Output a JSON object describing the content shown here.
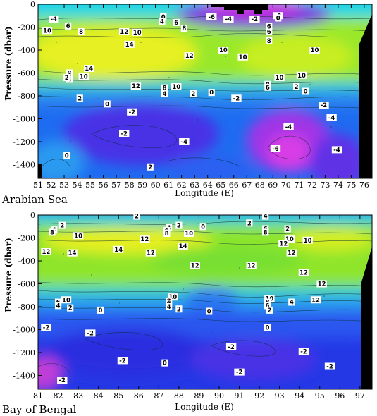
{
  "chart_data": [
    {
      "type": "heatmap",
      "region": "Arabian Sea",
      "xlabel": "Longitude (E)",
      "ylabel": "Pressure (dbar)",
      "xlim": [
        51,
        76.6
      ],
      "ylim": [
        0,
        -1520
      ],
      "x_ticks": [
        "51",
        "52",
        "53",
        "54",
        "55",
        "56",
        "57",
        "58",
        "59",
        "60",
        "61",
        "62",
        "63",
        "64",
        "65",
        "66",
        "67",
        "68",
        "69",
        "70",
        "71",
        "72",
        "73",
        "74",
        "75",
        "76"
      ],
      "y_ticks": [
        "0",
        "-200",
        "-400",
        "-600",
        "-800",
        "-1000",
        "-1200",
        "-1400"
      ],
      "contour_labels": [
        {
          "x": 52.2,
          "y": -130,
          "v": "-4"
        },
        {
          "x": 53.3,
          "y": -190,
          "v": "6"
        },
        {
          "x": 51.7,
          "y": -230,
          "v": "10"
        },
        {
          "x": 54.3,
          "y": -240,
          "v": "8"
        },
        {
          "x": 57.6,
          "y": -240,
          "v": "12"
        },
        {
          "x": 58.6,
          "y": -245,
          "v": "10"
        },
        {
          "x": 60.6,
          "y": -110,
          "v": "0"
        },
        {
          "x": 60.5,
          "y": -150,
          "v": "4"
        },
        {
          "x": 61.6,
          "y": -160,
          "v": "6"
        },
        {
          "x": 62.2,
          "y": -210,
          "v": "8"
        },
        {
          "x": 58.0,
          "y": -350,
          "v": "14"
        },
        {
          "x": 62.6,
          "y": -450,
          "v": "12"
        },
        {
          "x": 65.2,
          "y": -400,
          "v": "10"
        },
        {
          "x": 66.7,
          "y": -460,
          "v": "10"
        },
        {
          "x": 68.7,
          "y": -320,
          "v": "8"
        },
        {
          "x": 68.7,
          "y": -240,
          "v": "6"
        },
        {
          "x": 68.7,
          "y": -195,
          "v": "6"
        },
        {
          "x": 69.4,
          "y": -100,
          "v": "-2"
        },
        {
          "x": 69.4,
          "y": -120,
          "v": "0"
        },
        {
          "x": 64.3,
          "y": -110,
          "v": "-6"
        },
        {
          "x": 65.6,
          "y": -130,
          "v": "-4"
        },
        {
          "x": 67.6,
          "y": -130,
          "v": "-2"
        },
        {
          "x": 72.2,
          "y": -400,
          "v": "10"
        },
        {
          "x": 53.4,
          "y": -600,
          "v": "8"
        },
        {
          "x": 53.4,
          "y": -625,
          "v": "6"
        },
        {
          "x": 53.4,
          "y": -655,
          "v": "4"
        },
        {
          "x": 53.2,
          "y": -640,
          "v": "2"
        },
        {
          "x": 54.5,
          "y": -630,
          "v": "10"
        },
        {
          "x": 54.9,
          "y": -560,
          "v": "14"
        },
        {
          "x": 58.5,
          "y": -715,
          "v": "12"
        },
        {
          "x": 60.7,
          "y": -730,
          "v": "8"
        },
        {
          "x": 60.7,
          "y": -780,
          "v": "4"
        },
        {
          "x": 61.6,
          "y": -720,
          "v": "10"
        },
        {
          "x": 62.9,
          "y": -780,
          "v": "2"
        },
        {
          "x": 64.3,
          "y": -770,
          "v": "0"
        },
        {
          "x": 68.6,
          "y": -700,
          "v": "8"
        },
        {
          "x": 68.6,
          "y": -725,
          "v": "6"
        },
        {
          "x": 69.5,
          "y": -640,
          "v": "10"
        },
        {
          "x": 71.2,
          "y": -620,
          "v": "10"
        },
        {
          "x": 70.8,
          "y": -720,
          "v": "2"
        },
        {
          "x": 71.5,
          "y": -760,
          "v": "0"
        },
        {
          "x": 54.2,
          "y": -820,
          "v": "2"
        },
        {
          "x": 56.3,
          "y": -870,
          "v": "0"
        },
        {
          "x": 58.2,
          "y": -940,
          "v": "-2"
        },
        {
          "x": 66.2,
          "y": -820,
          "v": "-2"
        },
        {
          "x": 72.9,
          "y": -880,
          "v": "-2"
        },
        {
          "x": 73.5,
          "y": -990,
          "v": "-4"
        },
        {
          "x": 70.2,
          "y": -1070,
          "v": "-4"
        },
        {
          "x": 57.6,
          "y": -1130,
          "v": "-2"
        },
        {
          "x": 62.2,
          "y": -1200,
          "v": "-4"
        },
        {
          "x": 69.2,
          "y": -1260,
          "v": "-6"
        },
        {
          "x": 73.9,
          "y": -1270,
          "v": "-4"
        },
        {
          "x": 53.2,
          "y": -1320,
          "v": "0"
        },
        {
          "x": 59.6,
          "y": -1420,
          "v": "2"
        }
      ]
    },
    {
      "type": "heatmap",
      "region": "Bay of Bengal",
      "xlabel": "Longitude (E)",
      "ylabel": "Pressure (dbar)",
      "xlim": [
        81,
        97.6
      ],
      "ylim": [
        0,
        -1520
      ],
      "x_ticks": [
        "81",
        "82",
        "83",
        "84",
        "85",
        "86",
        "87",
        "88",
        "89",
        "90",
        "91",
        "92",
        "93",
        "94",
        "95",
        "96",
        "97"
      ],
      "y_ticks": [
        "0",
        "-200",
        "-400",
        "-600",
        "-800",
        "-1000",
        "-1200",
        "-1400"
      ],
      "contour_labels": [
        {
          "x": 85.9,
          "y": -10,
          "v": "2"
        },
        {
          "x": 92.3,
          "y": -10,
          "v": "4"
        },
        {
          "x": 91.5,
          "y": -70,
          "v": "2"
        },
        {
          "x": 82.2,
          "y": -90,
          "v": "2"
        },
        {
          "x": 81.8,
          "y": -130,
          "v": "4"
        },
        {
          "x": 81.7,
          "y": -150,
          "v": "8"
        },
        {
          "x": 83.0,
          "y": -180,
          "v": "10"
        },
        {
          "x": 87.5,
          "y": -110,
          "v": "4"
        },
        {
          "x": 87.4,
          "y": -135,
          "v": "6"
        },
        {
          "x": 87.4,
          "y": -160,
          "v": "8"
        },
        {
          "x": 88.0,
          "y": -90,
          "v": "2"
        },
        {
          "x": 89.2,
          "y": -100,
          "v": "0"
        },
        {
          "x": 88.5,
          "y": -160,
          "v": "10"
        },
        {
          "x": 86.3,
          "y": -210,
          "v": "12"
        },
        {
          "x": 88.2,
          "y": -270,
          "v": "14"
        },
        {
          "x": 85.0,
          "y": -300,
          "v": "14"
        },
        {
          "x": 82.7,
          "y": -330,
          "v": "14"
        },
        {
          "x": 81.4,
          "y": -320,
          "v": "12"
        },
        {
          "x": 86.6,
          "y": -330,
          "v": "12"
        },
        {
          "x": 92.3,
          "y": -120,
          "v": "6"
        },
        {
          "x": 92.3,
          "y": -150,
          "v": "8"
        },
        {
          "x": 93.4,
          "y": -120,
          "v": "2"
        },
        {
          "x": 93.5,
          "y": -210,
          "v": "10"
        },
        {
          "x": 94.4,
          "y": -220,
          "v": "10"
        },
        {
          "x": 93.2,
          "y": -250,
          "v": "12"
        },
        {
          "x": 93.6,
          "y": -330,
          "v": "12"
        },
        {
          "x": 88.8,
          "y": -440,
          "v": "12"
        },
        {
          "x": 91.6,
          "y": -440,
          "v": "12"
        },
        {
          "x": 94.2,
          "y": -500,
          "v": "12"
        },
        {
          "x": 95.1,
          "y": -600,
          "v": "12"
        },
        {
          "x": 82.4,
          "y": -740,
          "v": "10"
        },
        {
          "x": 82.0,
          "y": -760,
          "v": "6"
        },
        {
          "x": 82.0,
          "y": -790,
          "v": "4"
        },
        {
          "x": 82.6,
          "y": -810,
          "v": "2"
        },
        {
          "x": 87.7,
          "y": -715,
          "v": "10"
        },
        {
          "x": 87.5,
          "y": -750,
          "v": "8"
        },
        {
          "x": 87.5,
          "y": -770,
          "v": "6"
        },
        {
          "x": 87.5,
          "y": -800,
          "v": "4"
        },
        {
          "x": 88.0,
          "y": -820,
          "v": "2"
        },
        {
          "x": 92.5,
          "y": -730,
          "v": "10"
        },
        {
          "x": 92.4,
          "y": -760,
          "v": "8"
        },
        {
          "x": 92.4,
          "y": -790,
          "v": "6"
        },
        {
          "x": 92.5,
          "y": -830,
          "v": "2"
        },
        {
          "x": 93.6,
          "y": -760,
          "v": "4"
        },
        {
          "x": 94.8,
          "y": -740,
          "v": "12"
        },
        {
          "x": 84.1,
          "y": -830,
          "v": "0"
        },
        {
          "x": 89.5,
          "y": -840,
          "v": "0"
        },
        {
          "x": 81.4,
          "y": -980,
          "v": "-2"
        },
        {
          "x": 83.6,
          "y": -1030,
          "v": "-2"
        },
        {
          "x": 92.4,
          "y": -980,
          "v": "0"
        },
        {
          "x": 90.6,
          "y": -1150,
          "v": "-2"
        },
        {
          "x": 94.2,
          "y": -1190,
          "v": "-2"
        },
        {
          "x": 85.2,
          "y": -1270,
          "v": "-2"
        },
        {
          "x": 87.3,
          "y": -1290,
          "v": "0"
        },
        {
          "x": 95.5,
          "y": -1320,
          "v": "-2"
        },
        {
          "x": 91.0,
          "y": -1370,
          "v": "-2"
        },
        {
          "x": 82.2,
          "y": -1440,
          "v": "-2"
        }
      ]
    }
  ]
}
